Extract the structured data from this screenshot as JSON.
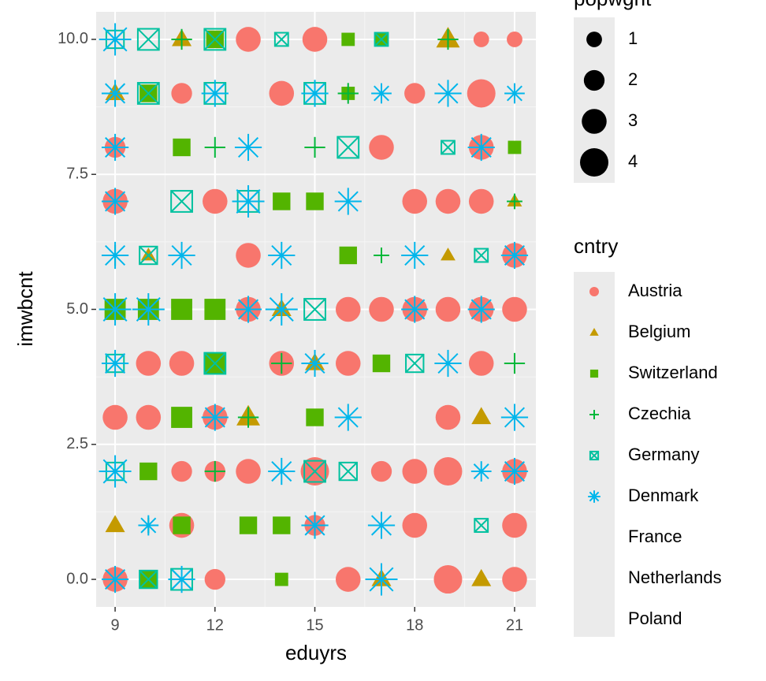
{
  "chart_data": {
    "type": "scatter",
    "x_label": "eduyrs",
    "y_label": "imwbcnt",
    "xlim": [
      8.43,
      21.64
    ],
    "ylim": [
      -0.51,
      10.51
    ],
    "xticks": [
      9,
      12,
      15,
      18,
      21
    ],
    "yticks": [
      {
        "value": 0,
        "label": "0.0"
      },
      {
        "value": 2.5,
        "label": "2.5"
      },
      {
        "value": 5,
        "label": "5.0"
      },
      {
        "value": 7.5,
        "label": "7.5"
      },
      {
        "value": 10,
        "label": "10.0"
      }
    ],
    "grid": true,
    "size_legend": {
      "title": "popwght",
      "values": [
        1,
        2,
        3,
        4
      ]
    },
    "legend_title": "cntry",
    "series": [
      {
        "name": "Austria",
        "color": "#F8766D",
        "shape": "circle",
        "x": [
          9,
          12,
          16,
          19,
          21,
          11,
          15,
          18,
          21,
          11,
          12,
          13,
          15,
          17,
          18,
          19,
          21,
          9,
          10,
          12,
          19,
          10,
          11,
          14,
          16,
          20,
          13,
          16,
          17,
          18,
          19,
          20,
          21,
          13,
          21,
          9,
          12,
          18,
          19,
          20,
          9,
          17,
          20,
          11,
          14,
          18,
          20,
          13,
          15,
          20,
          21
        ],
        "values": [
          0,
          0,
          0,
          0,
          0,
          1,
          1,
          1,
          1,
          2,
          2,
          2,
          2,
          2,
          2,
          2,
          2,
          3,
          3,
          3,
          3,
          4,
          4,
          4,
          4,
          4,
          5,
          5,
          5,
          5,
          5,
          5,
          5,
          6,
          6,
          7,
          7,
          7,
          7,
          7,
          8,
          8,
          8,
          9,
          9,
          9,
          9,
          10,
          10,
          10,
          10
        ],
        "sizes": [
          3,
          2,
          3,
          4,
          3,
          3,
          2,
          3,
          3,
          2,
          2,
          3,
          4,
          2,
          3,
          4,
          3,
          3,
          3,
          3,
          3,
          3,
          3,
          3,
          3,
          3,
          3,
          3,
          3,
          3,
          3,
          3,
          3,
          3,
          3,
          3,
          3,
          3,
          3,
          3,
          2,
          3,
          3,
          2,
          3,
          2,
          4,
          3,
          3,
          1,
          1
        ]
      },
      {
        "name": "Belgium",
        "color": "#C49A00",
        "shape": "triangle",
        "x": [
          9,
          17,
          20,
          13,
          15,
          10,
          19,
          21,
          14,
          19,
          9,
          11,
          20
        ],
        "values": [
          1,
          0,
          0,
          3,
          4,
          6,
          10,
          7,
          5,
          6,
          9,
          10,
          3
        ],
        "sizes": [
          2,
          2,
          2,
          3,
          2,
          1,
          3,
          1,
          2,
          1,
          2,
          2,
          2
        ]
      },
      {
        "name": "Switzerland",
        "color": "#53B400",
        "shape": "square",
        "x": [
          10,
          11,
          12,
          9,
          10,
          11,
          12,
          14,
          13,
          14,
          10,
          11,
          15,
          16,
          17,
          21,
          16,
          10,
          11,
          12,
          16,
          17,
          14,
          15
        ],
        "values": [
          0,
          1,
          4,
          5,
          5,
          5,
          5,
          0,
          1,
          1,
          2,
          3,
          3,
          6,
          4,
          8,
          9,
          9,
          8,
          10,
          10,
          10,
          7,
          7
        ],
        "sizes": [
          2,
          2,
          3,
          3,
          3,
          3,
          3,
          1,
          2,
          2,
          2,
          3,
          2,
          2,
          2,
          1,
          1,
          2,
          2,
          2,
          1,
          1,
          2,
          2
        ]
      },
      {
        "name": "Czechia",
        "color": "#00B83A",
        "shape": "plus",
        "x": [
          11,
          9,
          16,
          21,
          9,
          13,
          12,
          14,
          10,
          15,
          19,
          21,
          17,
          12,
          13
        ],
        "values": [
          10,
          10,
          9,
          7,
          6,
          3,
          2,
          4,
          1,
          8,
          10,
          4,
          6,
          8,
          5
        ],
        "sizes": [
          2,
          2,
          2,
          1,
          2,
          2,
          2,
          2,
          1,
          2,
          2,
          2,
          1,
          2,
          2
        ]
      },
      {
        "name": "Germany",
        "color": "#00C19F",
        "shape": "boxcross",
        "x": [
          11,
          10,
          9,
          15,
          13,
          10,
          12,
          12,
          10,
          9,
          15,
          16,
          15,
          18,
          12,
          9,
          11,
          10,
          20,
          19,
          17,
          14,
          16,
          20
        ],
        "values": [
          0,
          0,
          2,
          2,
          7,
          9,
          9,
          10,
          10,
          10,
          9,
          8,
          5,
          4,
          4,
          4,
          7,
          6,
          6,
          8,
          10,
          10,
          2,
          1
        ],
        "sizes": [
          3,
          2,
          2,
          3,
          3,
          3,
          3,
          3,
          3,
          2,
          3,
          3,
          3,
          2,
          3,
          2,
          3,
          2,
          1,
          1,
          1,
          1,
          2,
          1
        ]
      },
      {
        "name": "Denmark",
        "color": "#00B6EB",
        "shape": "asterisk",
        "x": [
          9,
          9,
          9,
          9,
          9,
          9,
          9,
          9,
          9,
          10,
          10,
          11,
          11,
          12,
          12,
          13,
          13,
          14,
          14,
          14,
          15,
          15,
          15,
          16,
          16,
          17,
          17,
          18,
          18,
          19,
          19,
          20,
          20,
          21,
          21,
          21,
          21,
          20,
          17,
          13
        ],
        "values": [
          0,
          2,
          4,
          5,
          6,
          7,
          8,
          9,
          10,
          1,
          5,
          0,
          6,
          3,
          9,
          5,
          7,
          2,
          5,
          6,
          1,
          4,
          9,
          3,
          7,
          0,
          9,
          6,
          5,
          4,
          9,
          5,
          8,
          2,
          6,
          9,
          3,
          2,
          1,
          8
        ],
        "sizes": [
          2,
          3,
          2,
          3,
          2,
          2,
          2,
          2,
          3,
          1,
          3,
          2,
          2,
          2,
          2,
          2,
          3,
          2,
          3,
          2,
          2,
          2,
          2,
          2,
          2,
          3,
          1,
          2,
          2,
          2,
          2,
          2,
          2,
          2,
          2,
          1,
          2,
          1,
          2,
          2
        ]
      },
      {
        "name": "France",
        "x": [],
        "values": [],
        "sizes": []
      },
      {
        "name": "Netherlands",
        "x": [],
        "values": [],
        "sizes": []
      },
      {
        "name": "Poland",
        "x": [],
        "values": [],
        "sizes": []
      }
    ]
  }
}
